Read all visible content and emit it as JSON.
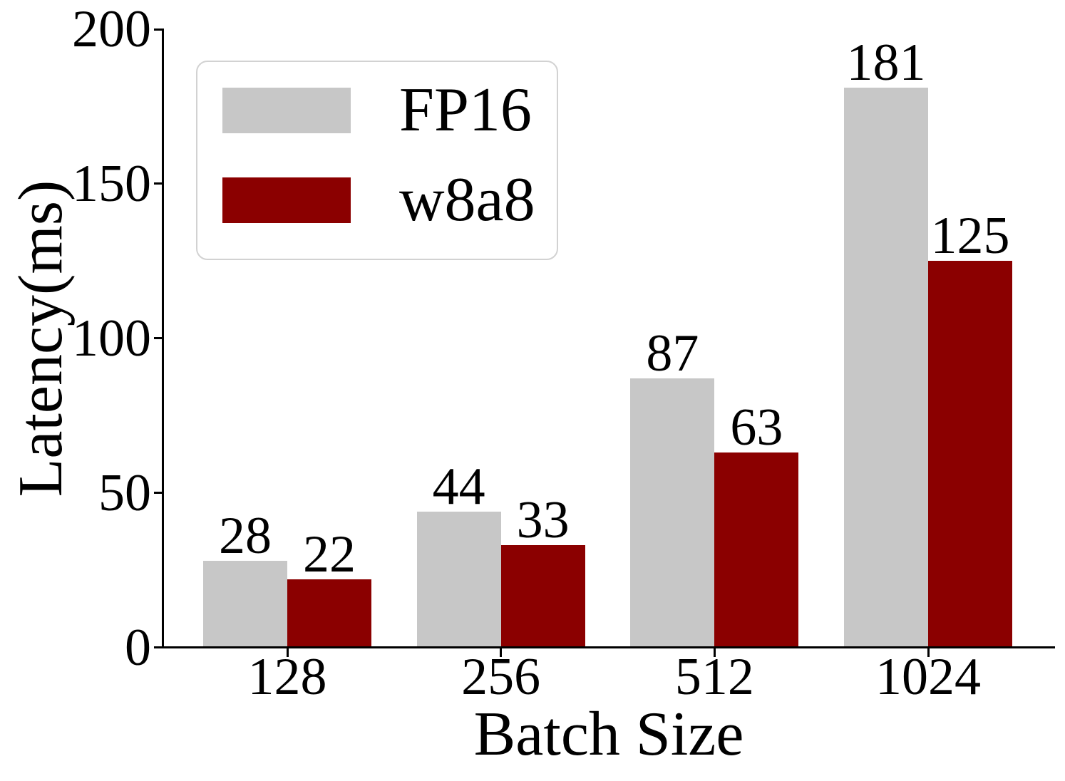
{
  "figure": {
    "background": "#ffffff",
    "text_color": "#000000",
    "axis_color": "#000000"
  },
  "chart_data": {
    "type": "bar",
    "title": "",
    "xlabel": "Batch Size",
    "ylabel": "Latency(ms)",
    "categories": [
      "128",
      "256",
      "512",
      "1024"
    ],
    "series": [
      {
        "name": "FP16",
        "color": "#c7c7c7",
        "values": [
          28,
          44,
          87,
          181
        ]
      },
      {
        "name": "w8a8",
        "color": "#8b0000",
        "values": [
          22,
          33,
          63,
          125
        ]
      }
    ],
    "bar_value_labels_shown": true,
    "ylim": [
      0,
      200
    ],
    "yticks": [
      "0",
      "50",
      "100",
      "150",
      "200"
    ],
    "grid": false,
    "legend": {
      "position": "upper-left",
      "entries": [
        "FP16",
        "w8a8"
      ],
      "border_color": "#d2d2d2"
    }
  }
}
